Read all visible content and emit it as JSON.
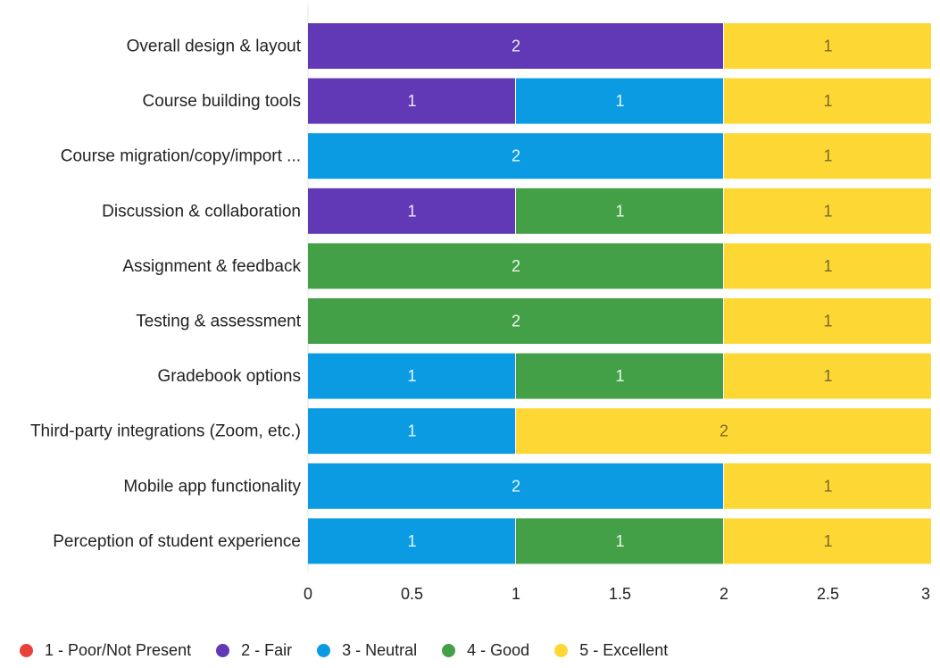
{
  "chart_data": {
    "type": "bar",
    "orientation": "horizontal",
    "stacked": true,
    "categories": [
      "Overall design & layout",
      "Course building tools",
      "Course migration/copy/import ...",
      "Discussion & collaboration",
      "Assignment & feedback",
      "Testing & assessment",
      "Gradebook options",
      "Third-party integrations (Zoom, etc.)",
      "Mobile app functionality",
      "Perception of student experience"
    ],
    "series": [
      {
        "name": "1 - Poor/Not Present",
        "color": "#e8413c",
        "values": [
          0,
          0,
          0,
          0,
          0,
          0,
          0,
          0,
          0,
          0
        ]
      },
      {
        "name": "2 - Fair",
        "color": "#6138b6",
        "values": [
          2,
          1,
          0,
          1,
          0,
          0,
          0,
          0,
          0,
          0
        ]
      },
      {
        "name": "3 - Neutral",
        "color": "#0b9be3",
        "values": [
          0,
          1,
          2,
          0,
          0,
          0,
          1,
          1,
          2,
          1
        ]
      },
      {
        "name": "4 - Good",
        "color": "#43a047",
        "values": [
          0,
          0,
          0,
          1,
          2,
          2,
          1,
          0,
          0,
          1
        ]
      },
      {
        "name": "5 - Excellent",
        "color": "#fdd835",
        "values": [
          1,
          1,
          1,
          1,
          1,
          1,
          1,
          2,
          1,
          1
        ]
      }
    ],
    "xlim": [
      0,
      3
    ],
    "xticks": [
      "0",
      "0.5",
      "1",
      "1.5",
      "2",
      "2.5",
      "3"
    ],
    "xtick_values": [
      0,
      0.5,
      1,
      1.5,
      2,
      2.5,
      3
    ],
    "grid": false,
    "legend_position": "bottom-left",
    "title": "",
    "xlabel": "",
    "ylabel": ""
  }
}
